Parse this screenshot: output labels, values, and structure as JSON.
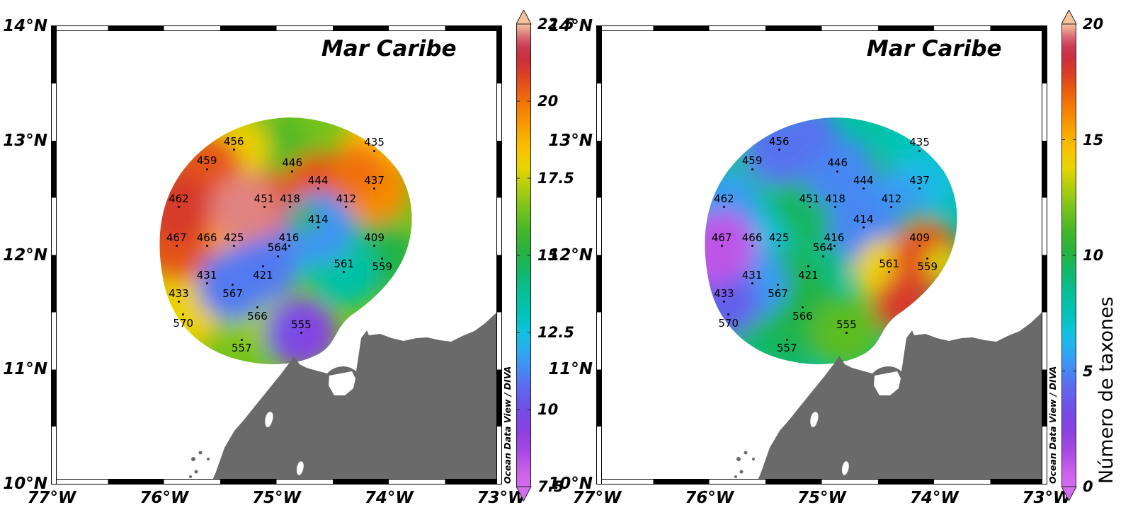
{
  "figure": {
    "credit": "Ocean Data View / DIVA",
    "background": "#ffffff",
    "land_color": "#6a6a6a",
    "frame_color": "#000000",
    "colormap_stops": [
      [
        0.0,
        "#d46cee"
      ],
      [
        0.035,
        "#c95fe9"
      ],
      [
        0.075,
        "#a94ae3"
      ],
      [
        0.115,
        "#8f41df"
      ],
      [
        0.15,
        "#7b48e4"
      ],
      [
        0.185,
        "#6a57e9"
      ],
      [
        0.22,
        "#5a6fee"
      ],
      [
        0.26,
        "#418ff3"
      ],
      [
        0.3,
        "#27aff0"
      ],
      [
        0.335,
        "#0fc2dd"
      ],
      [
        0.37,
        "#00c4bc"
      ],
      [
        0.42,
        "#06bf95"
      ],
      [
        0.47,
        "#14b765"
      ],
      [
        0.51,
        "#28b23c"
      ],
      [
        0.555,
        "#47b629"
      ],
      [
        0.605,
        "#7cc41b"
      ],
      [
        0.65,
        "#b3cf0d"
      ],
      [
        0.69,
        "#e8d400"
      ],
      [
        0.73,
        "#f9c200"
      ],
      [
        0.775,
        "#f9a000"
      ],
      [
        0.82,
        "#f47c06"
      ],
      [
        0.86,
        "#e85a14"
      ],
      [
        0.895,
        "#d93d26"
      ],
      [
        0.925,
        "#cb2f3d"
      ],
      [
        0.95,
        "#c93a52"
      ],
      [
        0.972,
        "#d96a75"
      ],
      [
        1.0,
        "#f5c39c"
      ]
    ]
  },
  "axes": {
    "lon_labels": [
      "77°W",
      "76°W",
      "75°W",
      "74°W",
      "73°W"
    ],
    "lon_values": [
      77,
      76,
      75,
      74,
      73
    ],
    "lat_labels": [
      "14°N",
      "13°N",
      "12°N",
      "11°N",
      "10°N"
    ],
    "lat_values": [
      14,
      13,
      12,
      11,
      10
    ]
  },
  "stations": [
    {
      "id": "456",
      "lon_w": 75.38,
      "lat_n": 12.92,
      "label_pos": "above"
    },
    {
      "id": "459",
      "lon_w": 75.62,
      "lat_n": 12.75,
      "label_pos": "above"
    },
    {
      "id": "446",
      "lon_w": 74.86,
      "lat_n": 12.73,
      "label_pos": "above"
    },
    {
      "id": "435",
      "lon_w": 74.13,
      "lat_n": 12.91,
      "label_pos": "above"
    },
    {
      "id": "444",
      "lon_w": 74.63,
      "lat_n": 12.58,
      "label_pos": "above"
    },
    {
      "id": "437",
      "lon_w": 74.13,
      "lat_n": 12.58,
      "label_pos": "above"
    },
    {
      "id": "462",
      "lon_w": 75.87,
      "lat_n": 12.42,
      "label_pos": "above"
    },
    {
      "id": "451",
      "lon_w": 75.11,
      "lat_n": 12.42,
      "label_pos": "above"
    },
    {
      "id": "418",
      "lon_w": 74.88,
      "lat_n": 12.42,
      "label_pos": "above"
    },
    {
      "id": "412",
      "lon_w": 74.38,
      "lat_n": 12.42,
      "label_pos": "above"
    },
    {
      "id": "414",
      "lon_w": 74.63,
      "lat_n": 12.24,
      "label_pos": "above"
    },
    {
      "id": "467",
      "lon_w": 75.89,
      "lat_n": 12.08,
      "label_pos": "above"
    },
    {
      "id": "466",
      "lon_w": 75.62,
      "lat_n": 12.08,
      "label_pos": "above"
    },
    {
      "id": "425",
      "lon_w": 75.38,
      "lat_n": 12.08,
      "label_pos": "above"
    },
    {
      "id": "416",
      "lon_w": 74.89,
      "lat_n": 12.08,
      "label_pos": "above"
    },
    {
      "id": "564",
      "lon_w": 74.99,
      "lat_n": 11.99,
      "label_pos": "above"
    },
    {
      "id": "409",
      "lon_w": 74.13,
      "lat_n": 12.08,
      "label_pos": "above"
    },
    {
      "id": "561",
      "lon_w": 74.4,
      "lat_n": 11.85,
      "label_pos": "above"
    },
    {
      "id": "559",
      "lon_w": 74.06,
      "lat_n": 11.97,
      "label_pos": "below"
    },
    {
      "id": "431",
      "lon_w": 75.62,
      "lat_n": 11.75,
      "label_pos": "above"
    },
    {
      "id": "421",
      "lon_w": 75.12,
      "lat_n": 11.9,
      "label_pos": "below"
    },
    {
      "id": "433",
      "lon_w": 75.87,
      "lat_n": 11.59,
      "label_pos": "above"
    },
    {
      "id": "567",
      "lon_w": 75.39,
      "lat_n": 11.74,
      "label_pos": "below"
    },
    {
      "id": "570",
      "lon_w": 75.83,
      "lat_n": 11.48,
      "label_pos": "below"
    },
    {
      "id": "566",
      "lon_w": 75.17,
      "lat_n": 11.54,
      "label_pos": "below"
    },
    {
      "id": "555",
      "lon_w": 74.78,
      "lat_n": 11.32,
      "label_pos": "above"
    },
    {
      "id": "557",
      "lon_w": 75.31,
      "lat_n": 11.26,
      "label_pos": "below"
    }
  ],
  "chart_data": [
    {
      "type": "heatmap",
      "panel": "left",
      "title": "Mar Caribe",
      "colorbar_label": "",
      "scale_min": 7.5,
      "scale_max": 22.5,
      "colorbar_ticks": [
        22.5,
        20,
        17.5,
        15,
        12.5,
        10,
        7.5
      ],
      "values": {
        "456": 18,
        "459": 20.5,
        "446": 16,
        "435": 18.5,
        "444": 20.5,
        "437": 19.5,
        "462": 21,
        "451": 20.5,
        "418": 15,
        "412": 14.5,
        "414": 11.5,
        "467": 20.5,
        "466": 19,
        "425": 18.5,
        "416": 13.5,
        "564": 13,
        "409": 16.5,
        "561": 13.5,
        "559": 15,
        "431": 15.5,
        "421": 11,
        "433": 18,
        "567": 11,
        "570": 18,
        "566": 17,
        "555": 9.5,
        "557": 16.5
      },
      "extra_field_points": [
        {
          "lon_w": 75.29,
          "lat_n": 12.4,
          "value": 22.2,
          "radius": 48
        },
        {
          "lon_w": 74.28,
          "lat_n": 12.74,
          "value": 20.0,
          "radius": 38
        },
        {
          "lon_w": 74.92,
          "lat_n": 13.07,
          "value": 16.0,
          "radius": 26
        },
        {
          "lon_w": 74.75,
          "lat_n": 12.32,
          "value": 15.5,
          "radius": 20
        },
        {
          "lon_w": 74.92,
          "lat_n": 11.35,
          "value": 10.0,
          "radius": 24
        }
      ]
    },
    {
      "type": "heatmap",
      "panel": "right",
      "title": "Mar Caribe",
      "colorbar_label": "Número de taxones",
      "scale_min": 0,
      "scale_max": 20,
      "colorbar_ticks": [
        20,
        15,
        10,
        5,
        0
      ],
      "values": {
        "456": 4.5,
        "459": 8.5,
        "446": 5,
        "435": 7.5,
        "444": 10,
        "437": 6.5,
        "462": 5.5,
        "451": 9.5,
        "418": 8.5,
        "412": 5.5,
        "414": 5,
        "467": 1,
        "466": 6.5,
        "425": 8,
        "416": 8,
        "564": 7.5,
        "409": 10.5,
        "561": 14,
        "559": 17.5,
        "431": 5.5,
        "421": 9,
        "433": 4,
        "567": 10,
        "570": 9.5,
        "566": 10,
        "555": 11.5,
        "557": 9.5
      },
      "extra_field_points": [
        {
          "lon_w": 75.99,
          "lat_n": 11.96,
          "value": 1.0,
          "radius": 38
        },
        {
          "lon_w": 75.11,
          "lat_n": 13.07,
          "value": 4.5,
          "radius": 38
        },
        {
          "lon_w": 74.29,
          "lat_n": 11.56,
          "value": 18.0,
          "radius": 40
        },
        {
          "lon_w": 73.93,
          "lat_n": 11.93,
          "value": 13.5,
          "radius": 24
        }
      ]
    }
  ]
}
